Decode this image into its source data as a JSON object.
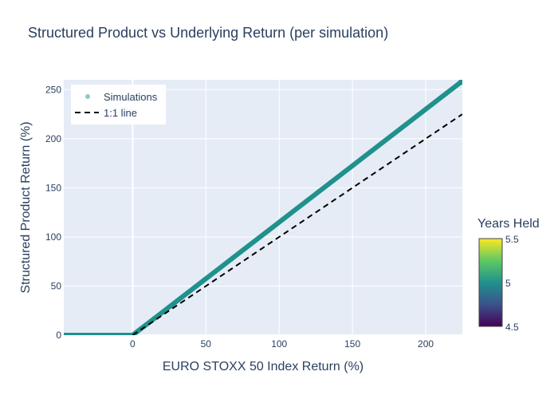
{
  "chart_data": {
    "type": "scatter",
    "title": "Structured Product vs Underlying Return (per simulation)",
    "xlabel": "EURO STOXX 50 Index Return (%)",
    "ylabel": "Structured Product Return (%)",
    "xlim": [
      -47,
      225
    ],
    "ylim": [
      0,
      260
    ],
    "xticks": [
      "0",
      "50",
      "100",
      "150",
      "200"
    ],
    "xtick_values": [
      0,
      50,
      100,
      150,
      200
    ],
    "yticks": [
      "0",
      "50",
      "100",
      "150",
      "200",
      "250"
    ],
    "ytick_values": [
      0,
      50,
      100,
      150,
      200,
      250
    ],
    "grid": true,
    "legend_position": "top-left",
    "series": [
      {
        "name": "Simulations",
        "kind": "markers",
        "color": "#21918c",
        "description_of_shape": "payoff: 0 for negative returns, then slope ~1.15",
        "x": [
          -47,
          -40,
          -30,
          -20,
          -10,
          -5,
          0,
          5,
          10,
          20,
          30,
          40,
          50,
          60,
          70,
          80,
          90,
          100,
          110,
          120,
          130,
          140,
          150,
          160,
          170,
          180,
          190,
          200,
          210,
          220,
          224
        ],
        "y": [
          0,
          0,
          0,
          0,
          0,
          0,
          0,
          5.75,
          11.5,
          23,
          34.5,
          46,
          57.5,
          69,
          80.5,
          92,
          103.5,
          115,
          126.5,
          138,
          149.5,
          161,
          172.5,
          184,
          195.5,
          207,
          218.5,
          230,
          241.5,
          253,
          257.6
        ]
      },
      {
        "name": "1:1 line",
        "kind": "line",
        "color": "#000000",
        "dash": "dashed",
        "x": [
          0,
          225
        ],
        "y": [
          0,
          225
        ]
      }
    ],
    "colorbar": {
      "title": "Years Held",
      "min": 4.5,
      "max": 5.5,
      "ticks": [
        "4.5",
        "5",
        "5.5"
      ],
      "tick_values": [
        4.5,
        5,
        5.5
      ],
      "colorscale": "viridis",
      "colors": [
        "#440154",
        "#3b528b",
        "#21918c",
        "#5ec962",
        "#fde725"
      ]
    },
    "plot_background": "#e5ecf6"
  }
}
